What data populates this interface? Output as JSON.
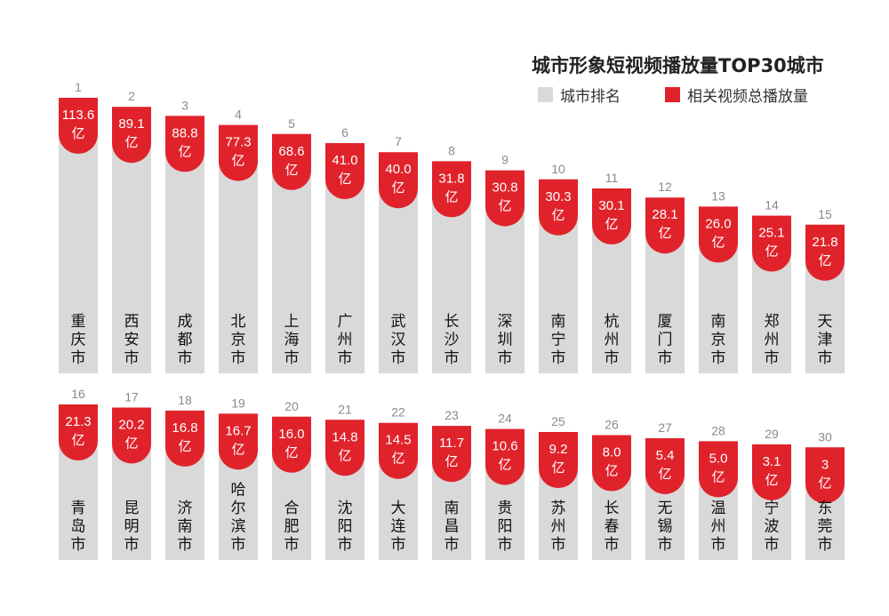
{
  "title": "城市形象短视频播放量TOP30城市",
  "legend": {
    "rank_label": "城市排名",
    "views_label": "相关视频总播放量",
    "rank_color": "#d9d9d9",
    "views_color": "#e0232b"
  },
  "unit": "亿",
  "chart_data": {
    "type": "bar",
    "title": "城市形象短视频播放量TOP30城市",
    "series": [
      {
        "name": "相关视频总播放量",
        "color": "#e0232b"
      }
    ],
    "ranks": [
      1,
      2,
      3,
      4,
      5,
      6,
      7,
      8,
      9,
      10,
      11,
      12,
      13,
      14,
      15,
      16,
      17,
      18,
      19,
      20,
      21,
      22,
      23,
      24,
      25,
      26,
      27,
      28,
      29,
      30
    ],
    "categories": [
      "重庆市",
      "西安市",
      "成都市",
      "北京市",
      "上海市",
      "广州市",
      "武汉市",
      "长沙市",
      "深圳市",
      "南宁市",
      "杭州市",
      "厦门市",
      "南京市",
      "郑州市",
      "天津市",
      "青岛市",
      "昆明市",
      "济南市",
      "哈尔滨市",
      "合肥市",
      "沈阳市",
      "大连市",
      "南昌市",
      "贵阳市",
      "苏州市",
      "长春市",
      "无锡市",
      "温州市",
      "宁波市",
      "东莞市"
    ],
    "value_labels": [
      "113.6",
      "89.1",
      "88.8",
      "77.3",
      "68.6",
      "41.0",
      "40.0",
      "31.8",
      "30.8",
      "30.3",
      "30.1",
      "28.1",
      "26.0",
      "25.1",
      "21.8",
      "21.3",
      "20.2",
      "16.8",
      "16.7",
      "16.0",
      "14.8",
      "14.5",
      "11.7",
      "10.6",
      "9.2",
      "8.0",
      "5.4",
      "5.0",
      "3.1",
      "3"
    ],
    "values": [
      113.6,
      89.1,
      88.8,
      77.3,
      68.6,
      41.0,
      40.0,
      31.8,
      30.8,
      30.3,
      30.1,
      28.1,
      26.0,
      25.1,
      21.8,
      21.3,
      20.2,
      16.8,
      16.7,
      16.0,
      14.8,
      14.5,
      11.7,
      10.6,
      9.2,
      8.0,
      5.4,
      5.0,
      3.1,
      3
    ],
    "legend_position": "top-right"
  }
}
